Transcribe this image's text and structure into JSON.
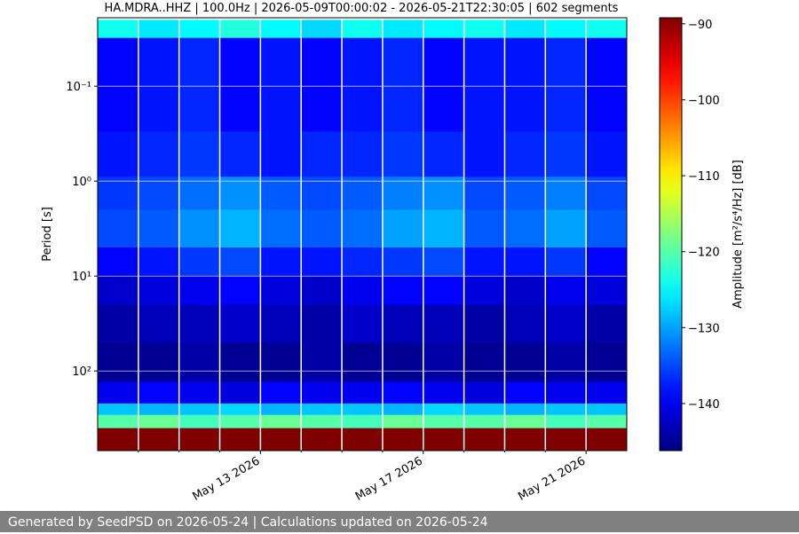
{
  "chart_data": {
    "type": "heatmap",
    "title": "HA.MDRA..HHZ | 100.0Hz | 2026-05-09T00:00:02 - 2026-05-21T22:30:05 | 602 segments",
    "ylabel": "Period [s]",
    "colorbar_label": "Amplitude [m²/s⁴/Hz] [dB]",
    "colormap": "jet",
    "y_log": true,
    "y_inverted": true,
    "x_edges": [
      "2026-05-09",
      "2026-05-10",
      "2026-05-11",
      "2026-05-12",
      "2026-05-13",
      "2026-05-14",
      "2026-05-15",
      "2026-05-16",
      "2026-05-17",
      "2026-05-18",
      "2026-05-19",
      "2026-05-20",
      "2026-05-21",
      "2026-05-22"
    ],
    "y_edges": [
      0.02,
      0.031,
      0.3,
      0.9,
      2,
      5,
      10,
      20,
      50,
      130,
      220,
      290,
      400,
      690
    ],
    "values": [
      [
        -124,
        -126,
        -125,
        -123,
        -125,
        -127,
        -124,
        -126,
        -125,
        -124,
        -126,
        -125,
        -124
      ],
      [
        -139,
        -138,
        -137,
        -139,
        -138,
        -139,
        -138,
        -137,
        -139,
        -138,
        -138,
        -137,
        -139
      ],
      [
        -138,
        -137,
        -136,
        -137,
        -138,
        -137,
        -137,
        -136,
        -137,
        -138,
        -137,
        -136,
        -138
      ],
      [
        -136,
        -135,
        -133,
        -131,
        -134,
        -135,
        -134,
        -132,
        -131,
        -135,
        -134,
        -132,
        -135
      ],
      [
        -135,
        -134,
        -131,
        -129,
        -133,
        -134,
        -133,
        -130,
        -129,
        -134,
        -133,
        -130,
        -134
      ],
      [
        -139,
        -138,
        -136,
        -135,
        -138,
        -138,
        -137,
        -136,
        -135,
        -138,
        -138,
        -136,
        -139
      ],
      [
        -142,
        -141,
        -140,
        -139,
        -141,
        -142,
        -140,
        -139,
        -139,
        -141,
        -142,
        -140,
        -141
      ],
      [
        -144,
        -143,
        -143,
        -142,
        -143,
        -144,
        -142,
        -143,
        -143,
        -144,
        -143,
        -142,
        -144
      ],
      [
        -145,
        -145,
        -144,
        -145,
        -145,
        -144,
        -145,
        -145,
        -144,
        -145,
        -145,
        -144,
        -145
      ],
      [
        -140,
        -139,
        -140,
        -141,
        -139,
        -140,
        -140,
        -139,
        -140,
        -141,
        -139,
        -140,
        -140
      ],
      [
        -128,
        -129,
        -128,
        -127,
        -129,
        -128,
        -128,
        -129,
        -127,
        -128,
        -129,
        -128,
        -128
      ],
      [
        -120,
        -119,
        -121,
        -120,
        -119,
        -120,
        -121,
        -119,
        -120,
        -120,
        -119,
        -121,
        -120
      ],
      [
        -89,
        -89,
        -89,
        -89,
        -89,
        -89,
        -89,
        -89,
        -89,
        -89,
        -89,
        -89,
        -89
      ]
    ],
    "xlim": [
      "2026-05-09",
      "2026-05-22"
    ],
    "xticks": [
      {
        "value": "2026-05-13",
        "label": "May 13 2026"
      },
      {
        "value": "2026-05-17",
        "label": "May 17 2026"
      },
      {
        "value": "2026-05-21",
        "label": "May 21 2026"
      }
    ],
    "xminorticks": [
      "2026-05-10",
      "2026-05-11",
      "2026-05-12",
      "2026-05-14",
      "2026-05-15",
      "2026-05-16",
      "2026-05-18",
      "2026-05-19",
      "2026-05-20"
    ],
    "ylim": [
      0.019,
      690
    ],
    "yticks": [
      {
        "value": 0.1,
        "label": "10⁻¹"
      },
      {
        "value": 1,
        "label": "10⁰"
      },
      {
        "value": 10,
        "label": "10¹"
      },
      {
        "value": 100,
        "label": "10²"
      }
    ],
    "clim": [
      -146.2,
      -89.2
    ],
    "cticks": [
      {
        "value": -90,
        "label": "−90"
      },
      {
        "value": -100,
        "label": "−100"
      },
      {
        "value": -110,
        "label": "−110"
      },
      {
        "value": -120,
        "label": "−120"
      },
      {
        "value": -130,
        "label": "−130"
      },
      {
        "value": -140,
        "label": "−140"
      }
    ],
    "grid": true
  },
  "footer": "Generated by SeedPSD on 2026-05-24 | Calculations updated on 2026-05-24"
}
